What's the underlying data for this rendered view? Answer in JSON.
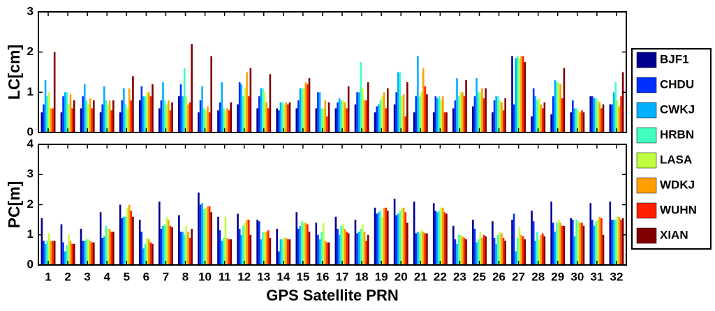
{
  "chart_data": [
    {
      "type": "bar",
      "ylabel": "LC[cm]",
      "ylim": [
        0,
        3
      ],
      "yticks": [
        0,
        1,
        2,
        3
      ],
      "series": [
        {
          "name": "BJF1",
          "color": "#00008f",
          "values": [
            0.5,
            0.5,
            0.6,
            0.5,
            0.5,
            0.8,
            0.6,
            0.9,
            0.5,
            0.55,
            0.7,
            0.6,
            0.6,
            0.6,
            0.6,
            0.6,
            0.7,
            0.5,
            0.7,
            0.5,
            0.5,
            0.6,
            0.65,
            0.5,
            1.9,
            0.4,
            0.45,
            0.5,
            0.9,
            0.7
          ]
        },
        {
          "name": "CHDU",
          "color": "#0030ff",
          "values": [
            0.7,
            0.9,
            0.9,
            0.7,
            0.8,
            1.15,
            0.8,
            1.2,
            0.8,
            0.75,
            1.25,
            0.9,
            0.55,
            0.8,
            1.0,
            0.75,
            1.0,
            0.65,
            1.0,
            0.9,
            0.9,
            0.8,
            0.9,
            0.8,
            0.7,
            1.1,
            0.9,
            0.8,
            0.9,
            0.7
          ]
        },
        {
          "name": "CWKJ",
          "color": "#00b0ff",
          "values": [
            1.3,
            1.0,
            1.2,
            1.15,
            1.1,
            0.9,
            1.25,
            0.9,
            1.15,
            1.25,
            1.2,
            1.1,
            0.75,
            1.1,
            1.0,
            0.85,
            1.0,
            0.7,
            1.5,
            1.9,
            0.85,
            1.35,
            1.35,
            0.9,
            1.85,
            0.9,
            1.3,
            0.6,
            0.85,
            1.0
          ]
        },
        {
          "name": "HRBN",
          "color": "#40ffc0",
          "values": [
            0.9,
            1.0,
            0.8,
            0.8,
            0.7,
            0.9,
            0.8,
            1.6,
            0.6,
            0.6,
            0.9,
            1.1,
            0.75,
            1.1,
            0.6,
            0.8,
            1.75,
            0.8,
            1.5,
            0.9,
            0.9,
            0.9,
            1.0,
            0.9,
            1.9,
            0.8,
            1.25,
            0.6,
            0.85,
            1.25
          ]
        },
        {
          "name": "LASA",
          "color": "#c0ff40",
          "values": [
            1.0,
            0.7,
            0.7,
            0.7,
            0.6,
            1.0,
            0.7,
            0.9,
            0.55,
            0.55,
            1.1,
            1.0,
            0.7,
            1.1,
            0.6,
            0.8,
            1.1,
            0.9,
            0.9,
            1.0,
            0.8,
            1.0,
            1.0,
            0.8,
            1.85,
            0.85,
            1.25,
            0.55,
            0.8,
            0.8
          ]
        },
        {
          "name": "WDKJ",
          "color": "#ffa000",
          "values": [
            0.6,
            0.95,
            0.85,
            0.8,
            1.1,
            1.0,
            0.8,
            0.7,
            0.65,
            0.6,
            1.5,
            0.75,
            0.75,
            1.25,
            0.8,
            0.75,
            0.8,
            1.0,
            0.95,
            1.6,
            0.9,
            1.0,
            1.1,
            0.75,
            1.9,
            0.7,
            1.2,
            0.5,
            0.75,
            0.65
          ]
        },
        {
          "name": "WUHN",
          "color": "#ff2000",
          "values": [
            0.6,
            0.6,
            0.6,
            0.55,
            0.8,
            0.9,
            0.55,
            0.75,
            0.5,
            0.55,
            0.9,
            0.6,
            0.7,
            1.2,
            0.4,
            0.6,
            0.8,
            0.6,
            0.4,
            1.15,
            0.5,
            0.9,
            0.85,
            0.55,
            1.9,
            0.6,
            0.85,
            0.55,
            0.6,
            0.9
          ]
        },
        {
          "name": "XIAN",
          "color": "#800000",
          "values": [
            2.0,
            0.8,
            0.8,
            0.8,
            1.4,
            1.2,
            0.75,
            2.2,
            1.9,
            0.75,
            1.6,
            1.45,
            0.75,
            1.35,
            0.75,
            1.15,
            1.25,
            1.1,
            1.25,
            0.95,
            0.5,
            1.3,
            1.1,
            0.85,
            1.75,
            0.75,
            1.6,
            0.5,
            0.7,
            1.5
          ]
        }
      ]
    },
    {
      "type": "bar",
      "ylabel": "PC[m]",
      "xlabel": "GPS Satellite PRN",
      "ylim": [
        0,
        4
      ],
      "yticks": [
        0,
        1,
        2,
        3,
        4
      ],
      "categories": [
        "1",
        "2",
        "3",
        "4",
        "5",
        "6",
        "7",
        "8",
        "10",
        "11",
        "12",
        "13",
        "14",
        "15",
        "16",
        "17",
        "18",
        "19",
        "20",
        "21",
        "22",
        "23",
        "25",
        "26",
        "27",
        "28",
        "29",
        "30",
        "31",
        "32"
      ],
      "series": [
        {
          "color": "#00008f",
          "values": [
            1.55,
            1.35,
            1.2,
            1.75,
            2.0,
            1.5,
            2.1,
            1.65,
            2.4,
            1.6,
            1.7,
            1.5,
            1.2,
            1.75,
            1.4,
            1.6,
            1.5,
            1.9,
            2.2,
            2.1,
            2.05,
            1.3,
            1.5,
            1.45,
            1.5,
            1.8,
            2.1,
            1.55,
            2.05,
            2.1
          ]
        },
        {
          "color": "#0030ff",
          "values": [
            0.8,
            0.75,
            0.8,
            0.9,
            1.55,
            1.1,
            1.2,
            1.1,
            2.0,
            1.15,
            1.2,
            1.45,
            0.45,
            1.2,
            1.0,
            1.2,
            1.05,
            1.7,
            1.65,
            1.05,
            1.8,
            0.85,
            1.2,
            0.9,
            1.7,
            1.45,
            1.4,
            1.5,
            1.5,
            1.5
          ]
        },
        {
          "color": "#00b0ff",
          "values": [
            0.7,
            0.45,
            0.8,
            0.95,
            1.6,
            0.55,
            1.3,
            1.1,
            2.05,
            0.8,
            1.0,
            0.85,
            0.85,
            1.3,
            0.85,
            1.0,
            1.1,
            1.75,
            1.7,
            1.1,
            1.75,
            0.7,
            0.75,
            0.7,
            0.45,
            0.8,
            1.1,
            0.95,
            1.3,
            1.5
          ]
        },
        {
          "color": "#40ffc0",
          "values": [
            0.8,
            0.65,
            0.85,
            1.3,
            1.6,
            0.7,
            1.35,
            1.0,
            1.85,
            0.9,
            1.3,
            1.1,
            0.85,
            1.45,
            1.1,
            1.3,
            1.2,
            1.8,
            1.8,
            1.05,
            1.8,
            1.0,
            0.85,
            1.0,
            0.9,
            1.1,
            1.4,
            1.5,
            1.45,
            1.5
          ]
        },
        {
          "color": "#c0ff40",
          "values": [
            1.05,
            1.0,
            0.85,
            1.2,
            1.9,
            0.9,
            1.6,
            1.3,
            1.9,
            1.6,
            1.4,
            1.1,
            0.9,
            1.4,
            1.4,
            1.35,
            1.35,
            1.6,
            1.9,
            1.15,
            1.9,
            1.0,
            1.1,
            1.1,
            1.25,
            0.85,
            1.5,
            1.45,
            1.5,
            1.6
          ]
        },
        {
          "color": "#ffa000",
          "values": [
            0.8,
            0.8,
            0.8,
            1.2,
            2.0,
            0.85,
            1.5,
            1.1,
            1.95,
            0.9,
            1.5,
            1.1,
            0.9,
            1.4,
            0.8,
            1.2,
            1.1,
            1.9,
            1.9,
            1.1,
            1.9,
            0.95,
            0.9,
            1.05,
            1.0,
            1.0,
            1.4,
            1.4,
            1.6,
            1.6
          ]
        },
        {
          "color": "#ff2000",
          "values": [
            0.8,
            0.7,
            0.75,
            1.1,
            1.8,
            0.75,
            1.3,
            0.9,
            1.95,
            0.85,
            1.5,
            1.15,
            0.85,
            1.35,
            0.75,
            1.1,
            0.8,
            1.9,
            1.75,
            1.05,
            1.75,
            0.9,
            1.0,
            0.9,
            0.95,
            1.05,
            1.3,
            1.4,
            1.55,
            1.5
          ]
        },
        {
          "color": "#800000",
          "values": [
            0.8,
            0.7,
            0.75,
            1.1,
            1.6,
            0.7,
            1.25,
            1.2,
            1.75,
            0.85,
            1.0,
            0.9,
            0.85,
            1.1,
            0.75,
            1.05,
            1.0,
            1.8,
            1.4,
            1.05,
            1.7,
            0.85,
            0.95,
            0.8,
            0.85,
            0.95,
            1.3,
            1.3,
            1.0,
            1.55
          ]
        }
      ]
    }
  ]
}
